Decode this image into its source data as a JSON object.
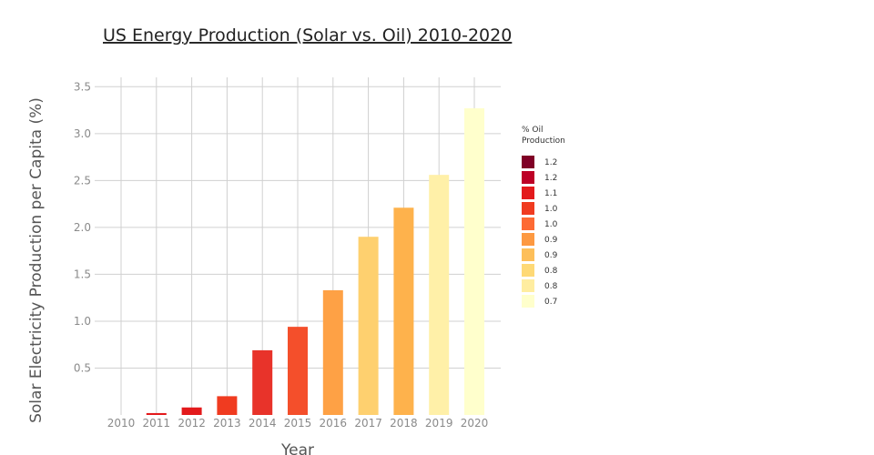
{
  "chart_data": {
    "type": "bar",
    "title": "US Energy Production (Solar vs. Oil) 2010-2020",
    "xlabel": "Year",
    "ylabel": "Solar Electricity Production per Capita (%)",
    "categories": [
      "2010",
      "2011",
      "2012",
      "2013",
      "2014",
      "2015",
      "2016",
      "2017",
      "2018",
      "2019",
      "2020"
    ],
    "values": [
      0.0,
      0.02,
      0.08,
      0.2,
      0.69,
      0.94,
      1.33,
      1.9,
      2.21,
      2.56,
      3.27
    ],
    "colors": [
      "#bd0026",
      "#e31a1c",
      "#e31a1c",
      "#f03b20",
      "#e8332a",
      "#f44f2b",
      "#fea145",
      "#fed06f",
      "#feb24c",
      "#fff0a8",
      "#ffffcc"
    ],
    "ylim": [
      0,
      3.6
    ],
    "yticks": [
      "0.5",
      "1.0",
      "1.5",
      "2.0",
      "2.5",
      "3.0",
      "3.5"
    ],
    "grid": true,
    "legend": {
      "title_line1": "% Oil",
      "title_line2": "Production",
      "placement": "right",
      "entries": [
        {
          "label": "1.2",
          "color": "#800026"
        },
        {
          "label": "1.2",
          "color": "#bd0026"
        },
        {
          "label": "1.1",
          "color": "#e31a1c"
        },
        {
          "label": "1.0",
          "color": "#f03b20"
        },
        {
          "label": "1.0",
          "color": "#fd6a34"
        },
        {
          "label": "0.9",
          "color": "#fd9941"
        },
        {
          "label": "0.9",
          "color": "#fdbf5a"
        },
        {
          "label": "0.8",
          "color": "#fed976"
        },
        {
          "label": "0.8",
          "color": "#ffeda0"
        },
        {
          "label": "0.7",
          "color": "#ffffcc"
        }
      ]
    }
  }
}
